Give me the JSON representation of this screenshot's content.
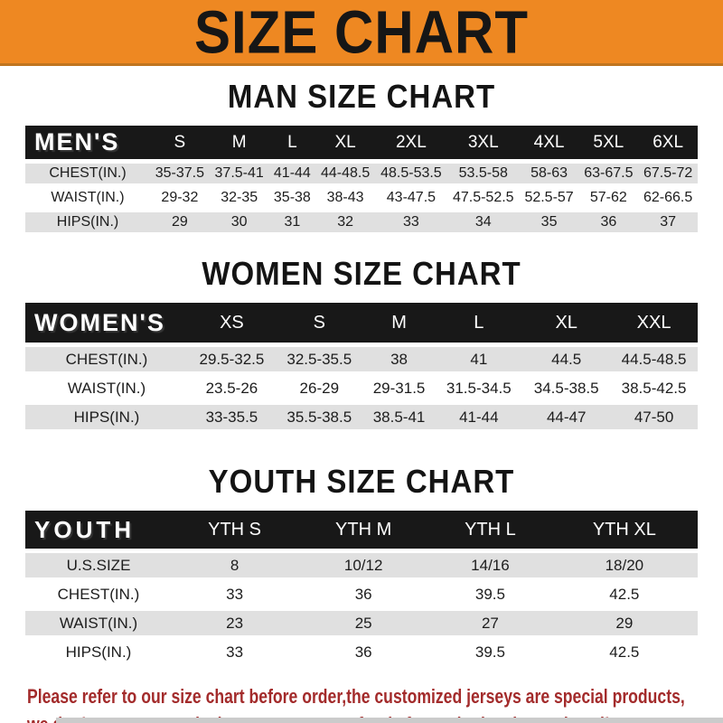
{
  "banner": {
    "title": "SIZE CHART"
  },
  "man": {
    "heading": "MAN SIZE CHART",
    "table": {
      "label": "MEN'S",
      "columns": [
        "S",
        "M",
        "L",
        "XL",
        "2XL",
        "3XL",
        "4XL",
        "5XL",
        "6XL"
      ],
      "rows": [
        {
          "label": "CHEST(IN.)",
          "values": [
            "35-37.5",
            "37.5-41",
            "41-44",
            "44-48.5",
            "48.5-53.5",
            "53.5-58",
            "58-63",
            "63-67.5",
            "67.5-72"
          ]
        },
        {
          "label": "WAIST(IN.)",
          "values": [
            "29-32",
            "32-35",
            "35-38",
            "38-43",
            "43-47.5",
            "47.5-52.5",
            "52.5-57",
            "57-62",
            "62-66.5"
          ]
        },
        {
          "label": "HIPS(IN.)",
          "values": [
            "29",
            "30",
            "31",
            "32",
            "33",
            "34",
            "35",
            "36",
            "37"
          ]
        }
      ]
    }
  },
  "women": {
    "heading": "WOMEN SIZE CHART",
    "table": {
      "label": "WOMEN'S",
      "columns": [
        "XS",
        "S",
        "M",
        "L",
        "XL",
        "XXL"
      ],
      "rows": [
        {
          "label": "CHEST(IN.)",
          "values": [
            "29.5-32.5",
            "32.5-35.5",
            "38",
            "41",
            "44.5",
            "44.5-48.5"
          ]
        },
        {
          "label": "WAIST(IN.)",
          "values": [
            "23.5-26",
            "26-29",
            "29-31.5",
            "31.5-34.5",
            "34.5-38.5",
            "38.5-42.5"
          ]
        },
        {
          "label": "HIPS(IN.)",
          "values": [
            "33-35.5",
            "35.5-38.5",
            "38.5-41",
            "41-44",
            "44-47",
            "47-50"
          ]
        }
      ]
    }
  },
  "youth": {
    "heading": "YOUTH SIZE CHART",
    "table": {
      "label": "YOUTH",
      "columns": [
        "YTH S",
        "YTH M",
        "YTH L",
        "YTH XL"
      ],
      "rows": [
        {
          "label": "U.S.SIZE",
          "values": [
            "8",
            "10/12",
            "14/16",
            "18/20"
          ]
        },
        {
          "label": "CHEST(IN.)",
          "values": [
            "33",
            "36",
            "39.5",
            "42.5"
          ]
        },
        {
          "label": "WAIST(IN.)",
          "values": [
            "23",
            "25",
            "27",
            "29"
          ]
        },
        {
          "label": "HIPS(IN.)",
          "values": [
            "33",
            "36",
            "39.5",
            "42.5"
          ]
        }
      ]
    }
  },
  "footer": {
    "line1": "Please refer to our size chart before order,the customized jerseys are special products,",
    "line2": "we don't accept cancel, change, teturn or refund after order has been placed!"
  },
  "colors": {
    "banner_orange": "#EE8822",
    "header_black": "#181818",
    "row_gray": "#E0E0E0",
    "note_red": "#A32B2B"
  }
}
